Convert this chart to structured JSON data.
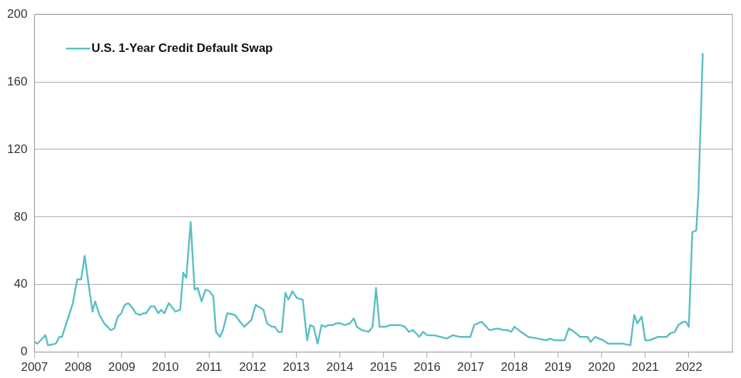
{
  "chart_data": {
    "type": "line",
    "legend": "top left",
    "grid": "y",
    "marker": "none",
    "line_style": "solid",
    "xlim": [
      2007,
      2023
    ],
    "xticks": [
      2007,
      2008,
      2009,
      2010,
      2011,
      2012,
      2013,
      2014,
      2015,
      2016,
      2017,
      2018,
      2019,
      2020,
      2021,
      2022
    ],
    "ylim": [
      0,
      200
    ],
    "yticks": [
      0,
      40,
      80,
      120,
      160,
      200
    ],
    "series": [
      {
        "name": "U.S. 1-Year Credit Default Swap",
        "color": "#5bbfc4",
        "x": [
          2007.0,
          2007.07,
          2007.25,
          2007.31,
          2007.49,
          2007.57,
          2007.63,
          2007.88,
          2007.98,
          2008.07,
          2008.15,
          2008.23,
          2008.33,
          2008.39,
          2008.49,
          2008.6,
          2008.75,
          2008.83,
          2008.91,
          2008.99,
          2009.07,
          2009.15,
          2009.25,
          2009.32,
          2009.42,
          2009.5,
          2009.56,
          2009.66,
          2009.75,
          2009.84,
          2009.9,
          2009.98,
          2010.08,
          2010.23,
          2010.34,
          2010.41,
          2010.48,
          2010.58,
          2010.67,
          2010.74,
          2010.83,
          2010.92,
          2011.01,
          2011.1,
          2011.16,
          2011.25,
          2011.32,
          2011.42,
          2011.6,
          2011.71,
          2011.81,
          2011.97,
          2012.07,
          2012.25,
          2012.33,
          2012.44,
          2012.51,
          2012.59,
          2012.67,
          2012.75,
          2012.82,
          2012.91,
          2013.02,
          2013.15,
          2013.25,
          2013.32,
          2013.4,
          2013.49,
          2013.58,
          2013.66,
          2013.74,
          2013.84,
          2013.91,
          2014.01,
          2014.12,
          2014.23,
          2014.32,
          2014.39,
          2014.5,
          2014.66,
          2014.75,
          2014.83,
          2014.91,
          2015.05,
          2015.16,
          2015.27,
          2015.38,
          2015.49,
          2015.58,
          2015.68,
          2015.82,
          2015.91,
          2016.0,
          2016.15,
          2016.31,
          2016.45,
          2016.59,
          2016.75,
          2016.99,
          2017.08,
          2017.25,
          2017.43,
          2017.62,
          2017.76,
          2017.84,
          2017.93,
          2018.0,
          2018.15,
          2018.32,
          2018.54,
          2018.73,
          2018.82,
          2018.92,
          2019.15,
          2019.25,
          2019.37,
          2019.51,
          2019.68,
          2019.75,
          2019.85,
          2020.04,
          2020.15,
          2020.32,
          2020.49,
          2020.66,
          2020.75,
          2020.82,
          2020.92,
          2021.0,
          2021.1,
          2021.29,
          2021.49,
          2021.57,
          2021.68,
          2021.76,
          2021.88,
          2021.93,
          2022.0,
          2022.08,
          2022.17,
          2022.22,
          2022.32
        ],
        "values": [
          6,
          5,
          10,
          4,
          5,
          9,
          9,
          29,
          43,
          43,
          57,
          42,
          24,
          30,
          22,
          17,
          13,
          14,
          21,
          23,
          28,
          29,
          26,
          23,
          22,
          23,
          23,
          27,
          27,
          23,
          25,
          23,
          29,
          24,
          25,
          47,
          44,
          77,
          37,
          38,
          30,
          37,
          36,
          33,
          12,
          9,
          13,
          23,
          22,
          18,
          15,
          19,
          28,
          25,
          17,
          15,
          15,
          12,
          12,
          35,
          31,
          36,
          32,
          31,
          7,
          16,
          15,
          5,
          16,
          15,
          16,
          16,
          17,
          17,
          16,
          17,
          20,
          15,
          13,
          12,
          15,
          38,
          15,
          15,
          16,
          16,
          16,
          15,
          12,
          13,
          9,
          12,
          10,
          10,
          9,
          8,
          10,
          9,
          9,
          16,
          18,
          13,
          14,
          13,
          13,
          12,
          15,
          12,
          9,
          8,
          7,
          8,
          7,
          7,
          14,
          12,
          9,
          9,
          6,
          9,
          7,
          5,
          5,
          5,
          4,
          22,
          17,
          21,
          7,
          7,
          9,
          9,
          11,
          12,
          16,
          18,
          18,
          15,
          71,
          72,
          94,
          177
        ]
      }
    ]
  }
}
